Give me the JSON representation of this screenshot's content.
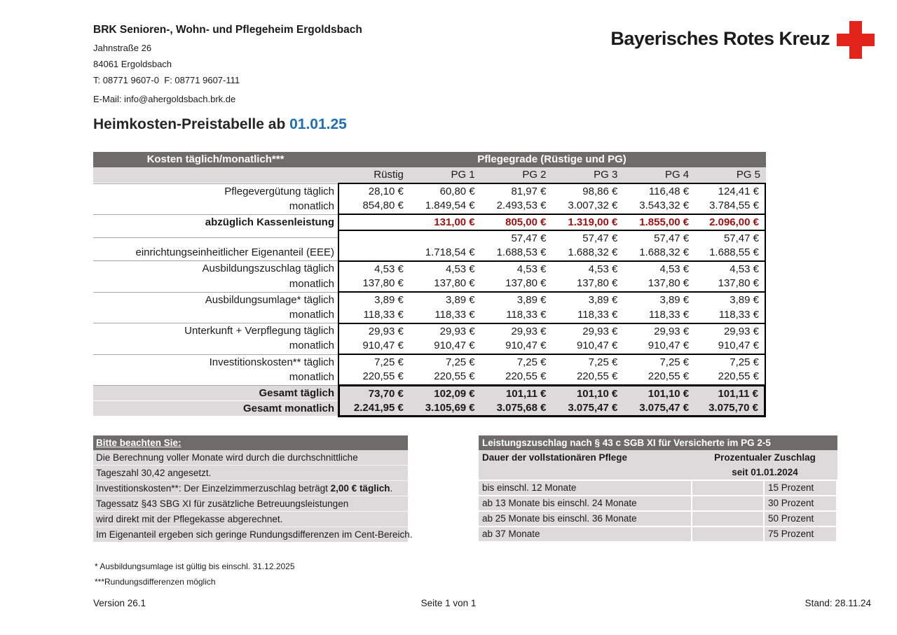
{
  "colors": {
    "header_gray": "#6f6b6b",
    "light_gray": "#dcdada",
    "dark_red": "#a01212",
    "accent_blue": "#1f6fb5",
    "cross_red": "#e2241d"
  },
  "letterhead": {
    "org": "BRK Senioren-, Wohn- und Pflegeheim Ergoldsbach",
    "street": "Jahnstraße 26",
    "city": "84061 Ergoldsbach",
    "phone": "T: 08771 9607-0  F: 08771 9607-111",
    "email": "E-Mail: info@ahergoldsbach.brk.de",
    "logo_text": "Bayerisches Rotes Kreuz",
    "logo_icon": "red-cross"
  },
  "title": {
    "prefix": "Heimkosten-Preistabelle ab ",
    "date": "01.01.25"
  },
  "main_table": {
    "header_left": "Kosten täglich/monatlich***",
    "header_right": "Pflegegrade (Rüstige und PG)",
    "columns": [
      "Rüstig",
      "PG 1",
      "PG 2",
      "PG 3",
      "PG 4",
      "PG 5"
    ],
    "rows": [
      {
        "label": "Pflegevergütung täglich",
        "values": [
          "28,10 €",
          "60,80 €",
          "81,97 €",
          "98,86 €",
          "116,48 €",
          "124,41 €"
        ],
        "group_start": true
      },
      {
        "label": "monatlich",
        "values": [
          "854,80 €",
          "1.849,54 €",
          "2.493,53 €",
          "3.007,32 €",
          "3.543,32 €",
          "3.784,55 €"
        ]
      },
      {
        "label": "abzüglich Kassenleistung",
        "values": [
          "",
          "131,00 €",
          "805,00 €",
          "1.319,00 €",
          "1.855,00 €",
          "2.096,00 €"
        ],
        "group_start": true,
        "red": true
      },
      {
        "label": "",
        "values": [
          "",
          "",
          "57,47 €",
          "57,47 €",
          "57,47 €",
          "57,47 €"
        ],
        "group_start": true
      },
      {
        "label": "einrichtungseinheitlicher Eigenanteil (EEE)",
        "values": [
          "",
          "1.718,54 €",
          "1.688,53 €",
          "1.688,32 €",
          "1.688,32 €",
          "1.688,55 €"
        ]
      },
      {
        "label": "Ausbildungszuschlag täglich",
        "values": [
          "4,53 €",
          "4,53 €",
          "4,53 €",
          "4,53 €",
          "4,53 €",
          "4,53 €"
        ],
        "group_start": true
      },
      {
        "label": "monatlich",
        "values": [
          "137,80 €",
          "137,80 €",
          "137,80 €",
          "137,80 €",
          "137,80 €",
          "137,80 €"
        ]
      },
      {
        "label": "Ausbildungsumlage* täglich",
        "values": [
          "3,89 €",
          "3,89 €",
          "3,89 €",
          "3,89 €",
          "3,89 €",
          "3,89 €"
        ],
        "group_start": true
      },
      {
        "label": "monatlich",
        "values": [
          "118,33 €",
          "118,33 €",
          "118,33 €",
          "118,33 €",
          "118,33 €",
          "118,33 €"
        ]
      },
      {
        "label": "Unterkunft + Verpflegung täglich",
        "values": [
          "29,93 €",
          "29,93 €",
          "29,93 €",
          "29,93 €",
          "29,93 €",
          "29,93 €"
        ],
        "group_start": true
      },
      {
        "label": "monatlich",
        "values": [
          "910,47 €",
          "910,47 €",
          "910,47 €",
          "910,47 €",
          "910,47 €",
          "910,47 €"
        ]
      },
      {
        "label": "Investitionskosten** täglich",
        "values": [
          "7,25 €",
          "7,25 €",
          "7,25 €",
          "7,25 €",
          "7,25 €",
          "7,25 €"
        ],
        "group_start": true
      },
      {
        "label": "monatlich",
        "values": [
          "220,55 €",
          "220,55 €",
          "220,55 €",
          "220,55 €",
          "220,55 €",
          "220,55 €"
        ]
      },
      {
        "label": "Gesamt täglich",
        "values": [
          "73,70 €",
          "102,09 €",
          "101,11 €",
          "101,10 €",
          "101,10 €",
          "101,11 €"
        ],
        "group_start": true,
        "total": true,
        "total_first": true
      },
      {
        "label": "Gesamt monatlich",
        "values": [
          "2.241,95 €",
          "3.105,69 €",
          "3.075,68 €",
          "3.075,47 €",
          "3.075,47 €",
          "3.075,70 €"
        ],
        "total": true,
        "total_last": true
      }
    ]
  },
  "notes": {
    "title": "Bitte beachten Sie: ",
    "lines": [
      {
        "pre": "Die Berechnung voller Monate wird durch die durchschnittliche",
        "bold": "",
        "post": ""
      },
      {
        "pre": "Tageszahl 30,42 angesetzt.",
        "bold": "",
        "post": ""
      },
      {
        "pre": "Investitionskosten**: Der Einzelzimmerzuschlag beträgt ",
        "bold": "2,00 € täglich",
        "post": "."
      },
      {
        "pre": "Tagessatz §43 SBG XI für zusätzliche Betreuungsleistungen",
        "bold": "",
        "post": ""
      },
      {
        "pre": "wird direkt mit der Pflegekasse abgerechnet.",
        "bold": "",
        "post": ""
      },
      {
        "pre": "Im Eigenanteil ergeben sich geringe Rundungsdifferenzen im Cent-Bereich.",
        "bold": "",
        "post": ""
      }
    ]
  },
  "surcharge_table": {
    "title": "Leistungszuschlag nach § 43 c SGB XI für Versicherte im PG 2-5",
    "col1_header": "Dauer der vollstationären Pflege",
    "col2_header": "Prozentualer Zuschlag",
    "col2_subheader": "seit 01.01.2024",
    "rows": [
      {
        "duration": "bis einschl. 12 Monate",
        "surcharge": "15 Prozent"
      },
      {
        "duration": "ab 13 Monate bis einschl. 24 Monate",
        "surcharge": "30 Prozent"
      },
      {
        "duration": "ab 25 Monate bis einschl. 36 Monate",
        "surcharge": "50 Prozent"
      },
      {
        "duration": "ab 37 Monate",
        "surcharge": "75 Prozent"
      }
    ]
  },
  "footnotes": {
    "line1": "* Ausbildungsumlage ist gültig bis einschl. 31.12.2025",
    "line2": "***Rundungsdifferenzen möglich"
  },
  "footer": {
    "version": "Version 26.1",
    "page": "Seite 1 von 1",
    "date": "Stand: 28.11.24"
  }
}
